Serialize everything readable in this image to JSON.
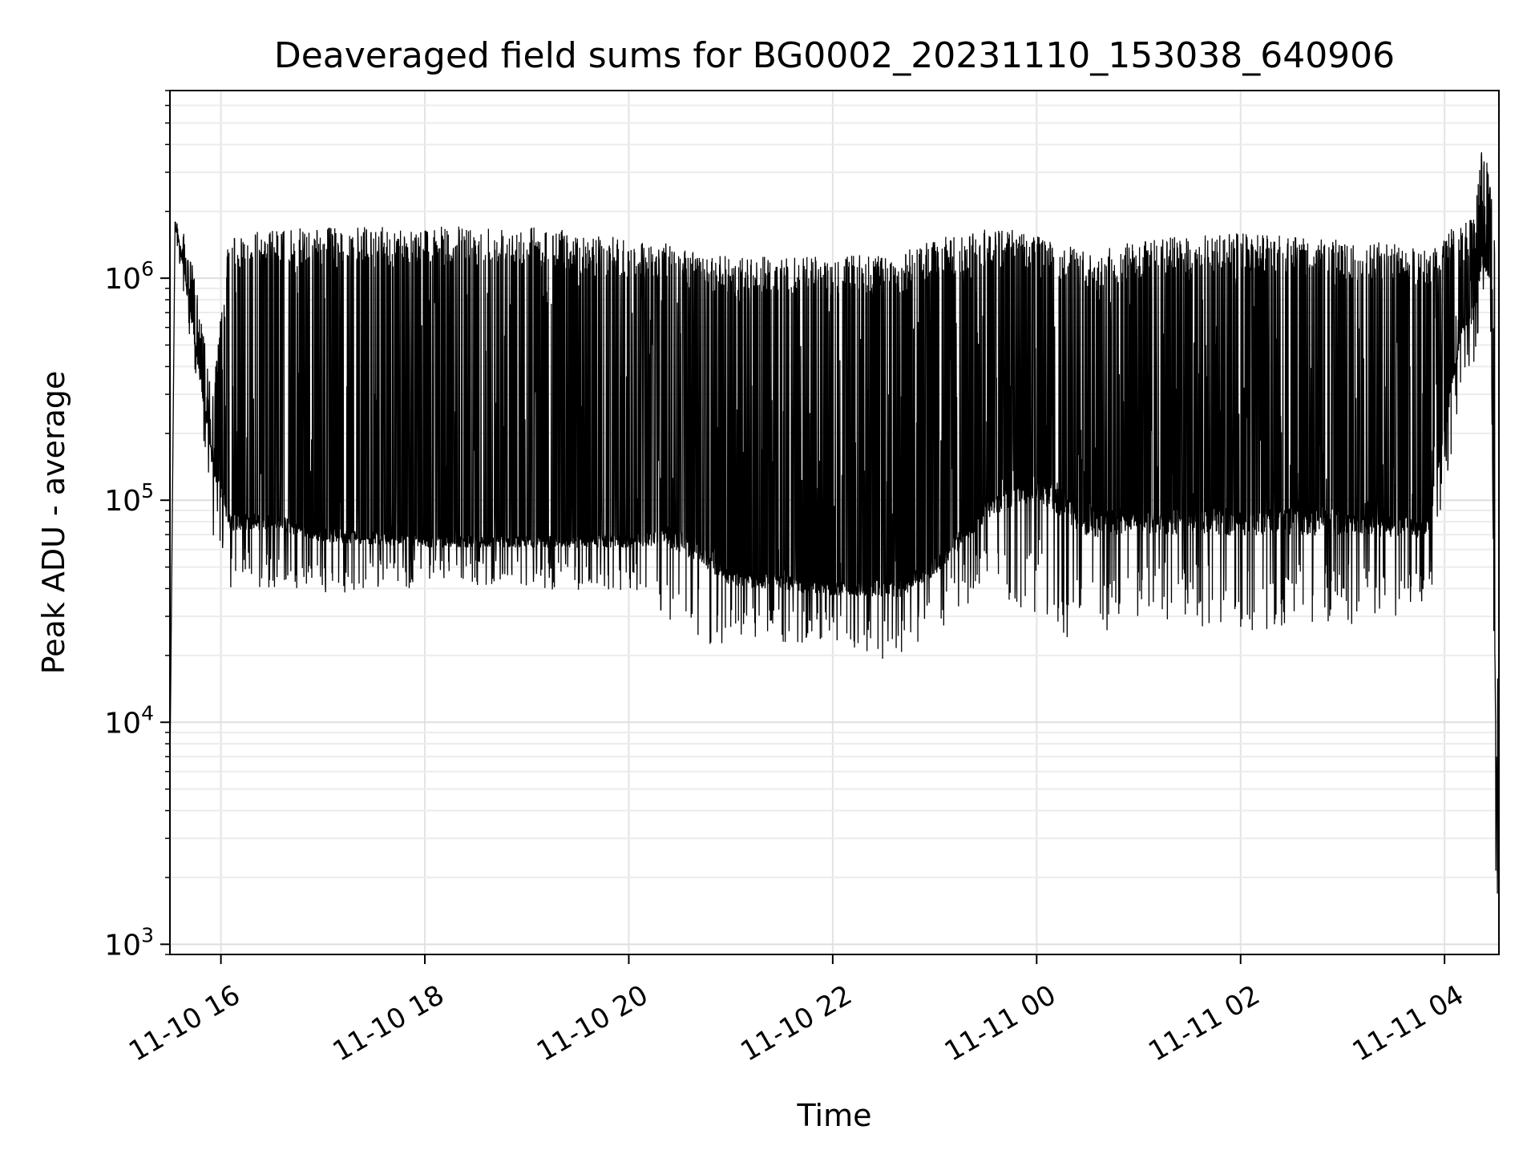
{
  "chart_data": {
    "type": "line",
    "title": "Deaveraged field sums for BG0002_20231110_153038_640906",
    "xlabel": "Time",
    "ylabel": "Peak ADU - average",
    "y_scale": "log",
    "ylim": [
      900,
      7000000
    ],
    "xlim": [
      "2023-11-10 15:30",
      "2023-11-11 04:32"
    ],
    "grid": true,
    "x_ticks": [
      {
        "t": "2023-11-10 16:00",
        "label": "11-10 16"
      },
      {
        "t": "2023-11-10 18:00",
        "label": "11-10 18"
      },
      {
        "t": "2023-11-10 20:00",
        "label": "11-10 20"
      },
      {
        "t": "2023-11-10 22:00",
        "label": "11-10 22"
      },
      {
        "t": "2023-11-11 00:00",
        "label": "11-11 00"
      },
      {
        "t": "2023-11-11 02:00",
        "label": "11-11 02"
      },
      {
        "t": "2023-11-11 04:00",
        "label": "11-11 04"
      }
    ],
    "y_ticks": [
      {
        "value": 1000,
        "base": "10",
        "exp": "3"
      },
      {
        "value": 10000,
        "base": "10",
        "exp": "4"
      },
      {
        "value": 100000,
        "base": "10",
        "exp": "5"
      },
      {
        "value": 1000000,
        "base": "10",
        "exp": "6"
      }
    ],
    "series": [
      {
        "color": "#000000",
        "envelope": {
          "time": [
            "2023-11-10 15:30",
            "2023-11-10 15:33",
            "2023-11-10 15:38",
            "2023-11-10 15:45",
            "2023-11-10 15:55",
            "2023-11-10 16:05",
            "2023-11-10 16:30",
            "2023-11-10 17:00",
            "2023-11-10 18:00",
            "2023-11-10 19:00",
            "2023-11-10 20:00",
            "2023-11-10 20:20",
            "2023-11-10 20:40",
            "2023-11-10 21:00",
            "2023-11-10 22:00",
            "2023-11-10 22:40",
            "2023-11-10 23:00",
            "2023-11-10 23:30",
            "2023-11-11 00:00",
            "2023-11-11 00:30",
            "2023-11-11 01:00",
            "2023-11-11 02:00",
            "2023-11-11 03:00",
            "2023-11-11 03:50",
            "2023-11-11 04:10",
            "2023-11-11 04:18",
            "2023-11-11 04:22",
            "2023-11-11 04:27",
            "2023-11-11 04:30",
            "2023-11-11 04:32"
          ],
          "high": [
            6000,
            1800000,
            1700000,
            1000000,
            300000,
            1600000,
            1650000,
            1700000,
            1700000,
            1750000,
            1500000,
            1450000,
            1300000,
            1250000,
            1250000,
            1300000,
            1500000,
            1700000,
            1650000,
            1300000,
            1500000,
            1600000,
            1500000,
            1400000,
            1800000,
            1900000,
            4500000,
            2800000,
            1500000,
            1300
          ],
          "base": [
            6000,
            1800000,
            1100000,
            500000,
            150000,
            80000,
            80000,
            70000,
            65000,
            65000,
            65000,
            70000,
            60000,
            45000,
            40000,
            40000,
            50000,
            90000,
            120000,
            80000,
            80000,
            80000,
            80000,
            75000,
            600000,
            700000,
            1200000,
            1000000,
            10000,
            1300
          ],
          "low": [
            6000,
            1800000,
            700000,
            350000,
            70000,
            40000,
            40000,
            38000,
            40000,
            40000,
            38000,
            30000,
            22000,
            22000,
            22000,
            18000,
            25000,
            40000,
            30000,
            20000,
            30000,
            25000,
            27000,
            30000,
            320000,
            350000,
            900000,
            600000,
            2000,
            1300
          ]
        }
      }
    ]
  }
}
